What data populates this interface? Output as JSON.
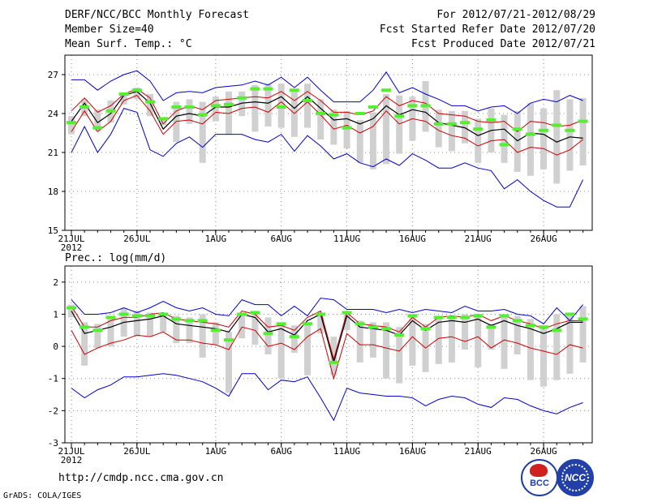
{
  "header": {
    "title": "DERF/NCC/BCC Monthly Forecast",
    "member_size": "Member Size=40",
    "variable": "Mean Surf. Temp.: °C",
    "period": "For 2012/07/21-2012/08/29",
    "started": "Fcst Started Refer Date 2012/07/20",
    "produced": "Fcst Produced Date 2012/07/21"
  },
  "footer": {
    "url": "http://cmdp.ncc.cma.gov.cn",
    "credit": "GrADS: COLA/IGES",
    "logo_left_text": "BCC",
    "logo_right_text": "NCC"
  },
  "colors": {
    "envelope": "#0000cc",
    "spread": "#cc0000",
    "mean": "#000000",
    "box": "#d0d0d0",
    "member": "#55ee33",
    "grid": "#888888"
  },
  "chart_data": [
    {
      "type": "line",
      "title": "Mean Surf. Temp.: °C",
      "ylim": [
        15,
        28.5
      ],
      "yticks": [
        15,
        18,
        21,
        24,
        27
      ],
      "x_tick_labels": [
        {
          "day": 1,
          "label": "21JUL"
        },
        {
          "day": 6,
          "label": "26JUL"
        },
        {
          "day": 12,
          "label": "1AUG"
        },
        {
          "day": 17,
          "label": "6AUG"
        },
        {
          "day": 22,
          "label": "11AUG"
        },
        {
          "day": 27,
          "label": "16AUG"
        },
        {
          "day": 32,
          "label": "21AUG"
        },
        {
          "day": 37,
          "label": "26AUG"
        }
      ],
      "year_label": "2012",
      "x": [
        1,
        2,
        3,
        4,
        5,
        6,
        7,
        8,
        9,
        10,
        11,
        12,
        13,
        14,
        15,
        16,
        17,
        18,
        19,
        20,
        21,
        22,
        23,
        24,
        25,
        26,
        27,
        28,
        29,
        30,
        31,
        32,
        33,
        34,
        35,
        36,
        37,
        38,
        39,
        40
      ],
      "series": [
        {
          "name": "max",
          "values": [
            26.6,
            26.6,
            25.8,
            26.5,
            27.0,
            27.3,
            26.5,
            25.0,
            25.6,
            25.7,
            25.6,
            26.0,
            26.1,
            26.2,
            26.5,
            26.2,
            26.8,
            26.0,
            26.8,
            25.8,
            24.9,
            24.9,
            24.9,
            25.8,
            27.2,
            25.6,
            26.0,
            25.5,
            25.1,
            24.6,
            24.6,
            24.2,
            24.5,
            24.6,
            24.0,
            24.8,
            25.1,
            24.9,
            25.4,
            25.0
          ]
        },
        {
          "name": "upper",
          "values": [
            24.2,
            25.2,
            24.1,
            24.6,
            25.5,
            25.9,
            25.2,
            23.2,
            24.2,
            24.6,
            24.3,
            25.0,
            25.1,
            25.2,
            25.3,
            25.2,
            25.7,
            25.0,
            25.7,
            25.0,
            24.1,
            24.1,
            23.9,
            24.2,
            25.3,
            24.6,
            25.0,
            24.8,
            24.0,
            23.9,
            23.8,
            23.4,
            23.3,
            23.4,
            22.6,
            23.4,
            23.3,
            23.0,
            23.1,
            23.5
          ]
        },
        {
          "name": "mean",
          "values": [
            23.4,
            24.8,
            23.3,
            24.0,
            25.4,
            25.7,
            24.8,
            22.8,
            23.8,
            24.0,
            23.8,
            24.5,
            24.5,
            24.8,
            24.9,
            24.8,
            25.3,
            24.4,
            25.3,
            24.4,
            23.5,
            23.6,
            23.2,
            23.6,
            24.6,
            23.9,
            24.3,
            24.1,
            23.3,
            23.1,
            22.9,
            22.3,
            22.7,
            22.8,
            21.9,
            22.5,
            22.4,
            21.8,
            22.2,
            22.1
          ]
        },
        {
          "name": "lower",
          "values": [
            22.6,
            24.2,
            22.6,
            23.4,
            25.0,
            25.4,
            24.2,
            22.4,
            23.4,
            23.5,
            23.2,
            24.1,
            24.0,
            24.4,
            24.5,
            24.1,
            24.9,
            24.0,
            24.9,
            23.9,
            22.8,
            23.1,
            22.5,
            23.0,
            24.2,
            23.2,
            23.6,
            23.4,
            22.7,
            22.3,
            22.1,
            21.5,
            21.9,
            22.0,
            21.0,
            21.4,
            21.3,
            20.8,
            21.2,
            22.0
          ]
        },
        {
          "name": "min",
          "values": [
            21.0,
            23.0,
            21.0,
            22.4,
            24.4,
            24.1,
            21.2,
            20.7,
            21.7,
            22.2,
            21.4,
            22.4,
            22.4,
            22.4,
            22.0,
            21.8,
            22.4,
            21.1,
            22.3,
            21.5,
            20.5,
            20.9,
            20.2,
            19.9,
            20.5,
            20.0,
            20.9,
            20.4,
            19.8,
            19.8,
            20.2,
            19.8,
            19.6,
            18.2,
            18.9,
            18.0,
            17.3,
            16.8,
            16.8,
            18.9
          ]
        },
        {
          "name": "box_top",
          "values": [
            23.8,
            25.1,
            24.3,
            25.0,
            25.6,
            26.0,
            25.5,
            23.6,
            24.9,
            25.1,
            24.9,
            25.3,
            25.7,
            25.7,
            26.2,
            26.3,
            26.3,
            25.9,
            26.3,
            25.1,
            24.3,
            24.2,
            23.5,
            24.1,
            25.5,
            25.4,
            25.3,
            26.5,
            24.3,
            24.2,
            24.2,
            23.6,
            24.4,
            23.9,
            24.2,
            24.8,
            24.4,
            25.8,
            25.1,
            25.2
          ]
        },
        {
          "name": "box_bottom",
          "values": [
            22.4,
            23.8,
            22.7,
            23.3,
            24.7,
            25.1,
            23.8,
            23.1,
            21.8,
            23.2,
            20.2,
            23.4,
            22.4,
            23.8,
            22.6,
            23.0,
            22.9,
            22.2,
            22.9,
            22.0,
            21.6,
            21.3,
            20.2,
            19.7,
            20.1,
            20.9,
            21.9,
            22.6,
            21.4,
            21.1,
            21.7,
            20.2,
            21.0,
            20.2,
            19.5,
            19.2,
            19.7,
            18.6,
            19.6,
            20.0
          ]
        },
        {
          "name": "member",
          "values": [
            23.3,
            24.5,
            22.9,
            24.2,
            25.5,
            25.8,
            24.9,
            23.6,
            24.5,
            24.5,
            23.9,
            24.6,
            24.7,
            25.2,
            25.9,
            25.9,
            24.5,
            25.8,
            25.0,
            24.0,
            23.9,
            22.9,
            24.0,
            24.5,
            25.8,
            23.8,
            24.6,
            24.6,
            23.2,
            23.2,
            23.3,
            22.8,
            23.5,
            21.6,
            22.8,
            22.4,
            22.7,
            23.1,
            22.7,
            23.4
          ]
        }
      ]
    },
    {
      "type": "line",
      "title": "Prec.: log(mm/d)",
      "ylim": [
        -3,
        2.5
      ],
      "yticks": [
        -3,
        -2,
        -1,
        0,
        1,
        2
      ],
      "x_tick_labels": [
        {
          "day": 1,
          "label": "21JUL"
        },
        {
          "day": 6,
          "label": "26JUL"
        },
        {
          "day": 12,
          "label": "1AUG"
        },
        {
          "day": 17,
          "label": "6AUG"
        },
        {
          "day": 22,
          "label": "11AUG"
        },
        {
          "day": 27,
          "label": "16AUG"
        },
        {
          "day": 32,
          "label": "21AUG"
        },
        {
          "day": 37,
          "label": "26AUG"
        }
      ],
      "year_label": "2012",
      "x": [
        1,
        2,
        3,
        4,
        5,
        6,
        7,
        8,
        9,
        10,
        11,
        12,
        13,
        14,
        15,
        16,
        17,
        18,
        19,
        20,
        21,
        22,
        23,
        24,
        25,
        26,
        27,
        28,
        29,
        30,
        31,
        32,
        33,
        34,
        35,
        36,
        37,
        38,
        39,
        40
      ],
      "series": [
        {
          "name": "max",
          "values": [
            1.45,
            1.0,
            1.0,
            1.05,
            1.2,
            1.05,
            1.2,
            1.4,
            1.2,
            1.1,
            1.2,
            1.0,
            0.95,
            1.45,
            1.3,
            1.3,
            0.95,
            1.25,
            0.95,
            1.5,
            1.45,
            1.15,
            1.15,
            1.15,
            1.05,
            1.15,
            1.05,
            1.15,
            1.1,
            1.05,
            1.25,
            1.1,
            1.1,
            1.15,
            1.0,
            0.95,
            0.7,
            1.2,
            0.8,
            1.3
          ]
        },
        {
          "name": "upper",
          "values": [
            1.25,
            0.6,
            0.6,
            0.8,
            0.9,
            0.9,
            1.0,
            1.05,
            0.85,
            0.8,
            0.75,
            0.7,
            0.6,
            1.1,
            1.0,
            0.6,
            0.65,
            0.5,
            0.9,
            1.1,
            -0.4,
            1.05,
            0.7,
            0.65,
            0.6,
            0.45,
            0.9,
            0.6,
            0.9,
            0.95,
            0.9,
            1.0,
            0.8,
            0.95,
            0.8,
            0.7,
            0.55,
            0.7,
            0.8,
            0.8
          ]
        },
        {
          "name": "mean",
          "values": [
            1.1,
            0.4,
            0.5,
            0.6,
            0.75,
            0.8,
            0.85,
            0.95,
            0.7,
            0.65,
            0.6,
            0.55,
            0.45,
            1.0,
            0.9,
            0.45,
            0.55,
            0.35,
            0.8,
            1.0,
            -0.5,
            0.95,
            0.6,
            0.55,
            0.5,
            0.35,
            0.8,
            0.5,
            0.75,
            0.8,
            0.75,
            0.85,
            0.65,
            0.8,
            0.65,
            0.55,
            0.4,
            0.55,
            0.75,
            0.75
          ]
        },
        {
          "name": "lower",
          "values": [
            0.5,
            -0.25,
            -0.05,
            0.1,
            0.2,
            0.35,
            0.3,
            0.45,
            0.2,
            0.2,
            0.1,
            0.05,
            -0.1,
            0.6,
            0.5,
            0.0,
            0.1,
            -0.1,
            0.3,
            0.55,
            -1.0,
            0.4,
            0.05,
            0.05,
            -0.05,
            -0.15,
            0.3,
            -0.05,
            0.25,
            0.3,
            0.15,
            0.3,
            -0.05,
            0.2,
            0.1,
            -0.05,
            -0.15,
            -0.25,
            0.05,
            -0.05
          ]
        },
        {
          "name": "min",
          "values": [
            -1.3,
            -1.6,
            -1.35,
            -1.2,
            -0.95,
            -0.95,
            -0.9,
            -0.85,
            -0.9,
            -1.0,
            -1.1,
            -1.3,
            -1.55,
            -0.85,
            -0.85,
            -1.35,
            -1.05,
            -1.1,
            -0.95,
            -1.6,
            -2.3,
            -1.3,
            -1.45,
            -1.5,
            -1.55,
            -1.55,
            -1.6,
            -1.85,
            -1.65,
            -1.55,
            -1.6,
            -1.8,
            -1.9,
            -1.6,
            -1.65,
            -1.85,
            -2.0,
            -2.1,
            -1.9,
            -1.75
          ]
        },
        {
          "name": "box_top",
          "values": [
            1.3,
            0.75,
            0.7,
            0.95,
            1.2,
            1.1,
            1.05,
            1.05,
            0.95,
            0.9,
            1.0,
            0.75,
            0.45,
            1.0,
            1.1,
            0.9,
            0.75,
            0.65,
            0.75,
            1.0,
            0.3,
            1.1,
            0.8,
            0.75,
            0.75,
            0.6,
            0.95,
            0.7,
            0.95,
            0.95,
            1.0,
            1.0,
            0.7,
            1.0,
            0.95,
            0.85,
            0.65,
            1.0,
            0.95,
            1.25
          ]
        },
        {
          "name": "box_bottom",
          "values": [
            0.9,
            -0.6,
            -0.05,
            0.0,
            0.3,
            0.3,
            0.3,
            0.45,
            0.1,
            0.1,
            -0.35,
            0.05,
            -1.45,
            0.25,
            0.05,
            -0.25,
            -1.0,
            -0.2,
            -0.9,
            0.4,
            -0.9,
            0.5,
            -0.5,
            -0.35,
            -1.0,
            -1.15,
            -0.6,
            -0.8,
            -0.55,
            -0.5,
            -0.1,
            -0.65,
            -0.1,
            -0.7,
            -0.25,
            -1.05,
            -1.25,
            -1.05,
            -0.85,
            -0.5
          ]
        },
        {
          "name": "member",
          "values": [
            1.2,
            0.6,
            0.5,
            0.9,
            1.0,
            0.95,
            0.95,
            1.0,
            0.85,
            0.8,
            0.8,
            0.5,
            0.2,
            1.0,
            1.05,
            0.4,
            0.7,
            0.3,
            0.7,
            1.0,
            -0.5,
            1.05,
            0.7,
            0.6,
            0.55,
            0.35,
            0.95,
            0.55,
            0.9,
            0.9,
            0.9,
            0.95,
            0.6,
            0.95,
            0.8,
            0.65,
            0.6,
            0.5,
            1.0,
            0.85
          ]
        }
      ]
    }
  ]
}
